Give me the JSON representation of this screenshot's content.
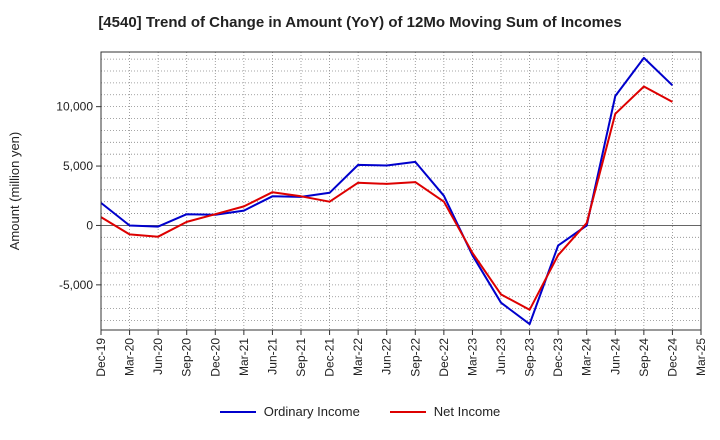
{
  "chart_data": {
    "type": "line",
    "title": "[4540]  Trend of Change in Amount (YoY) of 12Mo Moving Sum of Incomes",
    "ylabel": "Amount (million yen)",
    "xlabel": "",
    "ylim": [
      -8800,
      14600
    ],
    "yticks": [
      -5000,
      0,
      5000,
      10000
    ],
    "ytick_labels": [
      "-5,000",
      "0",
      "5,000",
      "10,000"
    ],
    "categories": [
      "Dec-19",
      "Mar-20",
      "Jun-20",
      "Sep-20",
      "Dec-20",
      "Mar-21",
      "Jun-21",
      "Sep-21",
      "Dec-21",
      "Mar-22",
      "Jun-22",
      "Sep-22",
      "Dec-22",
      "Mar-23",
      "Jun-23",
      "Sep-23",
      "Dec-23",
      "Mar-24",
      "Jun-24",
      "Sep-24",
      "Dec-24",
      "Mar-25"
    ],
    "grid": true,
    "legend_position": "bottom-center",
    "series": [
      {
        "name": "Ordinary Income",
        "color": "#0000cc",
        "values": [
          1900,
          0,
          -100,
          950,
          900,
          1250,
          2450,
          2400,
          2750,
          5100,
          5050,
          5350,
          2500,
          -2500,
          -6500,
          -8300,
          -1700,
          0,
          10900,
          14100,
          11800,
          null
        ]
      },
      {
        "name": "Net Income",
        "color": "#dd0000",
        "values": [
          700,
          -750,
          -950,
          300,
          950,
          1600,
          2800,
          2450,
          2000,
          3600,
          3500,
          3650,
          2000,
          -2300,
          -5800,
          -7100,
          -2500,
          200,
          9400,
          11700,
          10400,
          null
        ]
      }
    ]
  }
}
